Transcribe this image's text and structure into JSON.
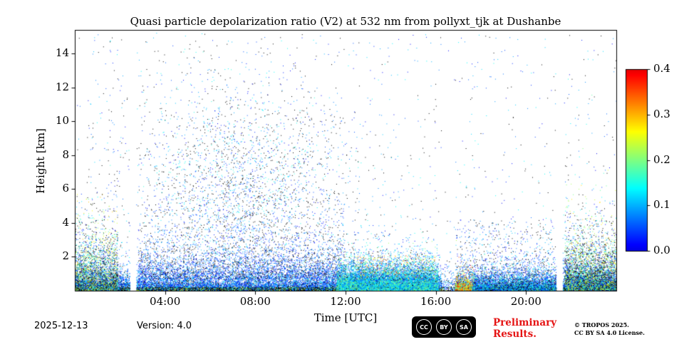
{
  "title": "Quasi particle depolarization ratio (V2) at 532 nm from pollyxt_tjk at Dushanbe",
  "axes": {
    "xlabel": "Time [UTC]",
    "ylabel": "Height [km]",
    "x_ticks": [
      "04:00",
      "08:00",
      "12:00",
      "16:00",
      "20:00"
    ],
    "x_tick_hours": [
      4,
      8,
      12,
      16,
      20
    ],
    "y_ticks": [
      "2",
      "4",
      "6",
      "8",
      "10",
      "12",
      "14"
    ],
    "y_tick_km": [
      2,
      4,
      6,
      8,
      10,
      12,
      14
    ]
  },
  "colorbar": {
    "tick_labels": [
      "0.0",
      "0.1",
      "0.2",
      "0.3",
      "0.4"
    ],
    "tick_values": [
      0.0,
      0.1,
      0.2,
      0.3,
      0.4
    ],
    "min": 0.0,
    "max": 0.4
  },
  "footer": {
    "date": "2025-12-13",
    "version": "Version: 4.0",
    "preliminary_line1": "Preliminary",
    "preliminary_line2": "Results.",
    "credit_line1": "© TROPOS 2025.",
    "credit_line2": "CC BY SA 4.0 License.",
    "license_badge": {
      "cc": "CC",
      "by": "BY",
      "sa": "SA"
    }
  },
  "colors": {
    "preliminary_red": "#e51414",
    "axis_color": "#000000",
    "background": "#ffffff",
    "badge_bg": "#000000"
  },
  "chart_data": {
    "type": "scatter",
    "title": "Quasi particle depolarization ratio (V2) at 532 nm from pollyxt_tjk at Dushanbe",
    "xlabel": "Time [UTC]",
    "ylabel": "Height [km]",
    "x_range_hours": [
      0,
      24
    ],
    "y_range_km": [
      0,
      15.4
    ],
    "value_range": [
      0,
      0.4
    ],
    "colormap": {
      "name": "jet-truncated",
      "t0": 0.1,
      "t1": 0.9
    },
    "seed": 42,
    "gaps_hours": [
      [
        2.43,
        2.72
      ],
      [
        21.33,
        21.62
      ]
    ],
    "thin_windows": [
      [
        16.25,
        16.85,
        0.25
      ]
    ],
    "features": [
      {
        "name": "ground-layer",
        "count": 22000,
        "t": {
          "type": "uniform",
          "min": 0,
          "max": 24
        },
        "h": {
          "type": "exp",
          "offset": 0.03,
          "scale": 0.45
        },
        "v": {
          "min": 0,
          "max": 0.13
        },
        "black": 0.16
      },
      {
        "name": "ground-dark-line",
        "count": 6000,
        "t": {
          "type": "uniform",
          "min": 0,
          "max": 24
        },
        "h": {
          "type": "uniform",
          "min": 0,
          "max": 0.22
        },
        "v": {
          "min": 0,
          "max": 0.3
        },
        "black": 0.5
      },
      {
        "name": "night-start-mix",
        "count": 3000,
        "t": {
          "type": "uniform",
          "min": 0,
          "max": 1.9
        },
        "h": {
          "type": "exp",
          "offset": 0.05,
          "scale": 1.2
        },
        "v": {
          "min": 0,
          "max": 0.3
        },
        "black": 0.28
      },
      {
        "name": "night-end-mix",
        "count": 4200,
        "t": {
          "type": "uniform",
          "min": 21.7,
          "max": 24
        },
        "h": {
          "type": "exp",
          "offset": 0.05,
          "scale": 1.05
        },
        "v": {
          "min": 0,
          "max": 0.3
        },
        "black": 0.3
      },
      {
        "name": "midday-plume",
        "count": 2600,
        "t": {
          "type": "gauss",
          "mean": 7.3,
          "sd": 2.6
        },
        "h": {
          "type": "gauss",
          "mean": 6.0,
          "sd": 3.3
        },
        "hmin": 1.4,
        "v": {
          "min": 0,
          "max": 0.16
        },
        "black": 0.38
      },
      {
        "name": "low-sparse-morning",
        "count": 3200,
        "t": {
          "type": "uniform",
          "min": 2.8,
          "max": 12
        },
        "h": {
          "type": "exp",
          "offset": 0.7,
          "scale": 1.2
        },
        "v": {
          "min": 0,
          "max": 0.11
        },
        "black": 0.3
      },
      {
        "name": "background-noise",
        "count": 1000,
        "t": {
          "type": "uniform",
          "min": 0,
          "max": 24
        },
        "h": {
          "type": "uniform",
          "min": 1.5,
          "max": 15.2
        },
        "v": {
          "min": 0,
          "max": 0.15
        },
        "black": 0.3
      },
      {
        "name": "afternoon-aerosol-layer",
        "count": 9500,
        "t": {
          "type": "uniform",
          "min": 11.6,
          "max": 16.1
        },
        "h": {
          "type": "exp",
          "offset": 0.02,
          "scale": 0.42
        },
        "v": {
          "min": 0.05,
          "max": 0.22
        },
        "black": 0.05
      },
      {
        "name": "afternoon-layer-top",
        "count": 1400,
        "t": {
          "type": "uniform",
          "min": 12.2,
          "max": 15.9
        },
        "h": {
          "type": "exp",
          "offset": 0.6,
          "scale": 0.55
        },
        "v": {
          "min": 0.02,
          "max": 0.16
        },
        "black": 0.12
      },
      {
        "name": "afternoon-warm-specks",
        "count": 260,
        "t": {
          "type": "uniform",
          "min": 12.4,
          "max": 16
        },
        "h": {
          "type": "uniform",
          "min": 0.6,
          "max": 2.1
        },
        "v": {
          "min": 0.2,
          "max": 0.38
        },
        "black": 0
      },
      {
        "name": "evening-orange-patch",
        "count": 900,
        "t": {
          "type": "uniform",
          "min": 16.85,
          "max": 17.7
        },
        "h": {
          "type": "exp",
          "offset": 0.02,
          "scale": 0.28
        },
        "v": {
          "min": 0.14,
          "max": 0.4
        },
        "black": 0.04
      },
      {
        "name": "evening-ground",
        "count": 2600,
        "t": {
          "type": "uniform",
          "min": 17.6,
          "max": 21.3
        },
        "h": {
          "type": "exp",
          "offset": 0.02,
          "scale": 0.33
        },
        "v": {
          "min": 0,
          "max": 0.2
        },
        "black": 0.2
      },
      {
        "name": "evening-upper-sparse",
        "count": 420,
        "t": {
          "type": "uniform",
          "min": 16.5,
          "max": 21.3
        },
        "h": {
          "type": "uniform",
          "min": 0.9,
          "max": 4.2
        },
        "v": {
          "min": 0,
          "max": 0.13
        },
        "black": 0.4
      }
    ]
  }
}
